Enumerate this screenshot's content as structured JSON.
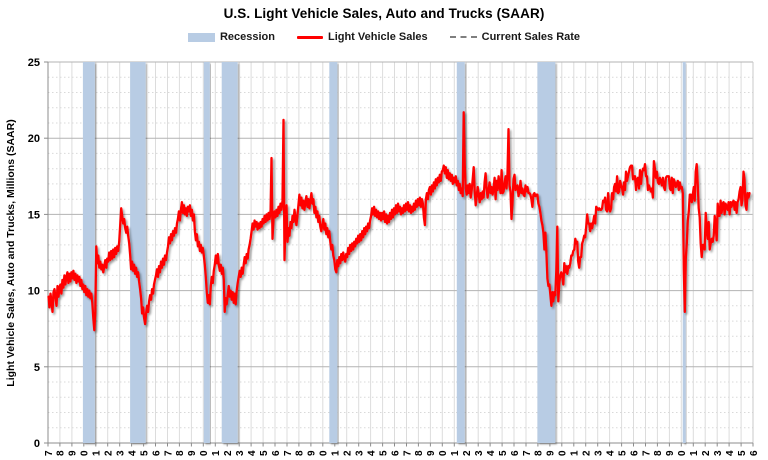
{
  "title": "U.S. Light Vehicle Sales, Auto and Trucks (SAAR)",
  "legend": [
    {
      "label": "Recession",
      "type": "band",
      "color": "#b8cce4"
    },
    {
      "label": "Light Vehicle Sales",
      "type": "line",
      "color": "#ff0000"
    },
    {
      "label": "Current Sales Rate",
      "type": "dashed-line",
      "color": "#7f7f7f"
    }
  ],
  "chart_data": {
    "type": "line",
    "title": "U.S. Light Vehicle Sales, Auto and Trucks (SAAR)",
    "ylabel": "Light Vehicle Sales, Auto and Trucks, Millions (SAAR)",
    "xlabel": "",
    "y_min": 0,
    "y_max": 25,
    "y_major_step": 5,
    "y_minor_step": 1,
    "y_tick_labels": [
      "0",
      "5",
      "10",
      "15",
      "20",
      "25"
    ],
    "x_start_year": 1967,
    "x_end_label_year": 2026,
    "x_label_format": "last digit of year, rotated 90",
    "grid": "major solid, minor dotted, yearly vertical lines",
    "legend_position": "top center",
    "current_sales_rate": 16.4,
    "recessions": [
      [
        1969.92,
        1970.92
      ],
      [
        1973.87,
        1975.17
      ],
      [
        1980.04,
        1980.54
      ],
      [
        1981.54,
        1982.87
      ],
      [
        1990.54,
        1991.21
      ],
      [
        2001.21,
        2001.87
      ],
      [
        2007.96,
        2009.46
      ],
      [
        2020.12,
        2020.29
      ]
    ],
    "series": {
      "name": "Light Vehicle Sales",
      "unit": "millions, seasonally adjusted annual rate",
      "frequency": "monthly",
      "values_by_year": {
        "1967": [
          9.6,
          8.9,
          9.8,
          9.3,
          8.6,
          9.9,
          10.1,
          9.5,
          9.0,
          10.3,
          9.6,
          10.2
        ],
        "1968": [
          10.4,
          9.8,
          10.7,
          10.2,
          11.0,
          10.4,
          10.9,
          11.2,
          10.5,
          11.1,
          10.6,
          11.2
        ],
        "1969": [
          10.8,
          11.3,
          10.7,
          11.1,
          10.5,
          11.0,
          10.6,
          10.9,
          10.3,
          10.7,
          10.1,
          10.4
        ],
        "1970": [
          9.9,
          10.3,
          9.7,
          10.1,
          9.6,
          10.0,
          9.5,
          9.8,
          9.2,
          8.2,
          7.4,
          8.6
        ],
        "1971": [
          12.9,
          11.8,
          12.3,
          11.5,
          11.9,
          11.4,
          11.7,
          11.2,
          11.6,
          12.0,
          11.5,
          12.1
        ],
        "1972": [
          11.9,
          12.5,
          12.0,
          12.6,
          12.1,
          12.7,
          12.2,
          12.8,
          12.4,
          12.9,
          12.6,
          13.2
        ],
        "1973": [
          14.3,
          15.4,
          14.9,
          14.4,
          14.7,
          14.1,
          13.8,
          14.2,
          13.6,
          13.1,
          12.3,
          11.4
        ],
        "1974": [
          11.9,
          11.3,
          11.7,
          11.1,
          11.5,
          10.9,
          11.2,
          10.6,
          10.1,
          9.5,
          8.5,
          8.9
        ],
        "1975": [
          8.2,
          7.8,
          8.5,
          9.0,
          8.6,
          9.3,
          9.7,
          9.4,
          10.1,
          9.8,
          10.4,
          10.7
        ],
        "1976": [
          11.0,
          11.4,
          10.9,
          11.6,
          11.2,
          11.9,
          11.5,
          12.1,
          11.7,
          12.3,
          12.0,
          12.5
        ],
        "1977": [
          12.9,
          13.5,
          13.1,
          13.7,
          13.3,
          13.9,
          13.6,
          14.1,
          13.8,
          14.4,
          14.7,
          15.2
        ],
        "1978": [
          14.6,
          15.3,
          15.8,
          15.1,
          15.6,
          15.0,
          15.4,
          14.9,
          15.5,
          15.2,
          15.6,
          14.9
        ],
        "1979": [
          15.3,
          14.6,
          15.0,
          13.9,
          13.3,
          13.7,
          12.9,
          13.2,
          12.6,
          13.0,
          12.5,
          12.8
        ],
        "1980": [
          12.3,
          11.7,
          10.9,
          9.9,
          9.2,
          9.7,
          9.1,
          10.3,
          10.9,
          10.5,
          11.3,
          11.7
        ],
        "1981": [
          12.3,
          11.8,
          12.4,
          11.7,
          11.3,
          11.7,
          11.1,
          11.5,
          10.7,
          8.6,
          9.5,
          9.1
        ],
        "1982": [
          9.7,
          10.3,
          9.6,
          10.0,
          9.4,
          9.9,
          9.2,
          9.8,
          9.1,
          10.0,
          10.5,
          10.9
        ],
        "1983": [
          11.3,
          10.9,
          11.5,
          11.1,
          11.7,
          12.2,
          11.8,
          12.4,
          12.1,
          12.7,
          13.0,
          13.4
        ],
        "1984": [
          13.9,
          14.4,
          14.0,
          14.6,
          14.2,
          14.5,
          14.0,
          14.4,
          14.1,
          14.5,
          14.2,
          14.7
        ],
        "1985": [
          14.4,
          14.9,
          14.5,
          15.0,
          14.6,
          15.1,
          14.7,
          15.3,
          18.7,
          13.4,
          14.7,
          15.2
        ],
        "1986": [
          14.8,
          15.3,
          14.9,
          15.5,
          15.1,
          15.7,
          15.3,
          15.9,
          21.2,
          12.0,
          14.3,
          15.6
        ],
        "1987": [
          13.2,
          14.1,
          13.6,
          14.5,
          14.1,
          14.9,
          14.5,
          15.3,
          14.8,
          14.3,
          14.9,
          15.6
        ],
        "1988": [
          16.3,
          15.6,
          16.1,
          15.4,
          15.9,
          15.3,
          15.8,
          16.2,
          15.5,
          16.0,
          15.4,
          15.9
        ],
        "1989": [
          16.4,
          15.7,
          16.0,
          15.1,
          15.5,
          14.8,
          15.2,
          14.5,
          14.9,
          14.2,
          13.9,
          14.3
        ],
        "1990": [
          14.7,
          14.0,
          14.4,
          13.7,
          14.1,
          13.5,
          13.9,
          13.2,
          12.7,
          13.0,
          12.3,
          12.0
        ],
        "1991": [
          11.4,
          11.2,
          12.0,
          11.6,
          12.2,
          11.8,
          12.4,
          12.0,
          12.5,
          12.1,
          11.9,
          12.4
        ],
        "1992": [
          12.2,
          12.8,
          12.4,
          13.0,
          12.6,
          13.1,
          12.7,
          13.2,
          12.9,
          13.4,
          13.1,
          13.6
        ],
        "1993": [
          13.2,
          13.7,
          13.3,
          13.9,
          13.5,
          14.1,
          13.7,
          14.2,
          13.9,
          14.4,
          14.1,
          14.6
        ],
        "1994": [
          14.9,
          15.4,
          15.0,
          15.5,
          14.9,
          15.3,
          14.8,
          15.2,
          14.7,
          15.1,
          14.6,
          15.1
        ],
        "1995": [
          14.7,
          15.2,
          14.5,
          15.0,
          14.4,
          14.9,
          14.5,
          15.1,
          14.7,
          15.3,
          14.8,
          15.4
        ],
        "1996": [
          15.0,
          15.6,
          15.1,
          15.7,
          15.2,
          15.5,
          15.0,
          15.4,
          15.1,
          15.6,
          15.2,
          15.7
        ],
        "1997": [
          15.3,
          15.8,
          15.2,
          15.6,
          15.1,
          15.5,
          15.2,
          15.7,
          15.3,
          15.9,
          15.5,
          16.0
        ],
        "1998": [
          15.6,
          16.1,
          15.5,
          16.0,
          15.7,
          14.8,
          14.3,
          16.0,
          16.4,
          16.0,
          16.6,
          16.8
        ],
        "1999": [
          16.3,
          16.9,
          16.5,
          17.1,
          16.7,
          17.3,
          16.9,
          17.4,
          17.1,
          17.6,
          17.2,
          17.8
        ],
        "2000": [
          17.9,
          18.2,
          17.7,
          18.1,
          17.4,
          17.9,
          17.3,
          17.7,
          17.2,
          17.6,
          17.0,
          17.4
        ],
        "2001": [
          17.1,
          17.5,
          16.9,
          17.2,
          16.6,
          17.0,
          16.4,
          16.7,
          16.2,
          21.7,
          18.3,
          16.7
        ],
        "2002": [
          16.3,
          16.9,
          16.4,
          17.0,
          16.1,
          16.6,
          17.3,
          18.1,
          16.5,
          15.6,
          16.2,
          16.8
        ],
        "2003": [
          16.3,
          15.8,
          16.4,
          16.0,
          16.5,
          16.1,
          17.1,
          17.7,
          16.7,
          16.1,
          16.6,
          17.1
        ],
        "2004": [
          16.4,
          16.8,
          16.3,
          16.7,
          17.4,
          16.0,
          17.2,
          16.6,
          17.5,
          16.9,
          16.4,
          17.9
        ],
        "2005": [
          16.4,
          16.5,
          17.1,
          17.5,
          16.7,
          17.7,
          20.6,
          16.9,
          16.5,
          14.7,
          15.8,
          17.3
        ],
        "2006": [
          17.6,
          16.6,
          16.7,
          16.9,
          16.2,
          16.5,
          17.2,
          16.4,
          16.7,
          16.3,
          16.2,
          16.9
        ],
        "2007": [
          16.5,
          16.8,
          16.4,
          16.4,
          16.3,
          16.0,
          15.5,
          16.3,
          16.4,
          16.2,
          16.3,
          16.3
        ],
        "2008": [
          15.7,
          15.5,
          15.1,
          14.6,
          14.3,
          13.8,
          12.7,
          13.8,
          12.5,
          10.8,
          10.3,
          10.4
        ],
        "2009": [
          9.7,
          9.0,
          9.9,
          9.3,
          9.9,
          9.7,
          11.3,
          14.2,
          9.3,
          10.5,
          11.0,
          11.2
        ],
        "2010": [
          10.9,
          10.4,
          11.8,
          11.2,
          11.6,
          11.1,
          11.6,
          11.5,
          11.8,
          12.3,
          12.3,
          12.6
        ],
        "2011": [
          12.7,
          13.4,
          13.1,
          13.2,
          11.9,
          11.5,
          12.2,
          12.2,
          13.1,
          13.3,
          13.6,
          13.5
        ],
        "2012": [
          14.2,
          15.0,
          14.4,
          14.4,
          13.9,
          14.4,
          14.1,
          14.5,
          14.9,
          14.4,
          15.5,
          15.4
        ],
        "2013": [
          15.3,
          15.4,
          15.3,
          15.3,
          15.4,
          15.9,
          15.8,
          16.1,
          15.3,
          15.2,
          16.4,
          15.4
        ],
        "2014": [
          15.2,
          15.4,
          16.4,
          16.0,
          16.8,
          17.0,
          16.5,
          17.5,
          16.4,
          16.5,
          17.2,
          16.9
        ],
        "2015": [
          16.7,
          16.3,
          17.1,
          16.6,
          17.8,
          17.2,
          17.5,
          17.8,
          18.1,
          18.2,
          18.2,
          17.3
        ],
        "2016": [
          17.5,
          17.5,
          16.6,
          17.3,
          17.4,
          16.7,
          17.9,
          17.0,
          17.7,
          18.0,
          17.9,
          18.3
        ],
        "2017": [
          17.5,
          17.5,
          16.6,
          16.9,
          16.7,
          16.5,
          16.7,
          16.1,
          18.5,
          18.0,
          17.4,
          17.8
        ],
        "2018": [
          17.1,
          17.0,
          17.4,
          17.2,
          16.9,
          17.4,
          16.8,
          16.6,
          17.4,
          17.5,
          17.5,
          17.5
        ],
        "2019": [
          16.7,
          16.6,
          17.4,
          16.4,
          17.3,
          17.1,
          16.8,
          17.0,
          17.2,
          16.6,
          17.1,
          16.7
        ],
        "2020": [
          16.8,
          16.4,
          11.4,
          8.6,
          12.1,
          13.1,
          14.6,
          15.2,
          16.3,
          16.3,
          15.8,
          16.3
        ],
        "2021": [
          16.8,
          15.9,
          17.8,
          18.3,
          17.0,
          15.4,
          14.8,
          13.1,
          12.2,
          13.0,
          13.0,
          12.7
        ],
        "2022": [
          15.1,
          14.1,
          13.4,
          14.5,
          12.7,
          13.1,
          13.4,
          13.2,
          13.6,
          14.9,
          14.2,
          13.3
        ],
        "2023": [
          15.7,
          14.9,
          14.9,
          15.9,
          15.1,
          15.7,
          15.8,
          15.0,
          15.7,
          15.5,
          15.3,
          15.8
        ],
        "2024": [
          15.0,
          15.8,
          15.5,
          15.8,
          15.9,
          15.3,
          15.8,
          15.1,
          15.8,
          16.0,
          16.5,
          16.8
        ],
        "2025": [
          15.6,
          16.0,
          17.8,
          17.3,
          15.6,
          15.3,
          16.4,
          16.1,
          16.4
        ]
      }
    }
  }
}
